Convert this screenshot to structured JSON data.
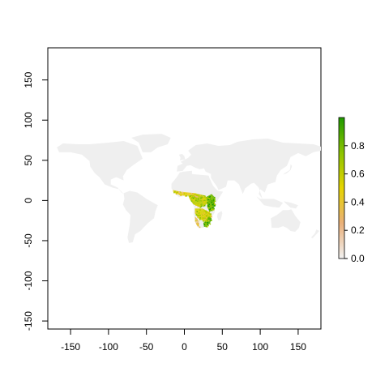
{
  "chart_data": {
    "type": "heatmap",
    "description_kind": "raster map",
    "title": "",
    "xlabel": "",
    "ylabel": "",
    "xlim": [
      -180,
      180
    ],
    "ylim": [
      -160,
      190
    ],
    "x_ticks": [
      -150,
      -100,
      -50,
      0,
      50,
      100,
      150
    ],
    "x_tick_labels": [
      "-150",
      "-100",
      "-50",
      "0",
      "50",
      "100",
      "150"
    ],
    "y_ticks": [
      -150,
      -100,
      -50,
      0,
      50,
      100,
      150
    ],
    "y_tick_labels": [
      "-150",
      "-100",
      "-50",
      "0",
      "50",
      "100",
      "150"
    ],
    "grid": false,
    "legend": {
      "type": "colorbar",
      "placement": "right",
      "range": [
        0.0,
        1.0
      ],
      "ticks": [
        0.0,
        0.2,
        0.4,
        0.6,
        0.8
      ],
      "tick_labels": [
        "0.0",
        "0.2",
        "0.4",
        "0.6",
        "0.8"
      ],
      "colors": [
        "#f2f2f2",
        "#eab07a",
        "#e6d400",
        "#8cc400",
        "#1f9a00"
      ]
    },
    "background_land_color": "#efefef",
    "value_color_scale": [
      "#f2f2f2",
      "#eab07a",
      "#e6d400",
      "#8cc400",
      "#1f9a00"
    ],
    "highlighted_region": "sub-Saharan Africa"
  }
}
